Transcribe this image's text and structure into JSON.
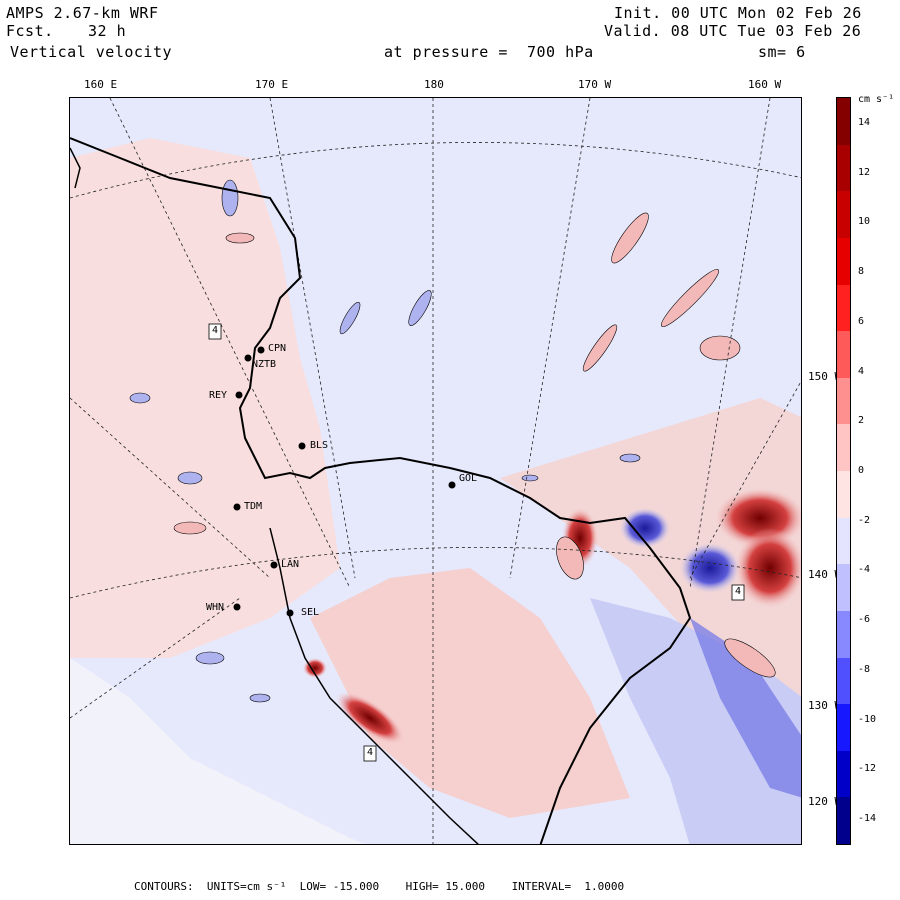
{
  "header": {
    "model": "AMPS 2.67-km WRF",
    "forecast_label": "Fcst.",
    "forecast_hours": "32 h",
    "field": "Vertical velocity",
    "init": "Init. 00 UTC Mon 02 Feb 26",
    "valid": "Valid. 08 UTC Tue 03 Feb 26",
    "pressure": "at pressure =  700 hPa",
    "smoothing": "sm= 6"
  },
  "longitude_labels": [
    "160 E",
    "170 E",
    "180",
    "170 W",
    "160 W"
  ],
  "latitude_labels": [
    "150 W",
    "140 W",
    "130 W",
    "120 W"
  ],
  "colorbar": {
    "unit": "cm s⁻¹",
    "tick_labels": [
      "14",
      "12",
      "10",
      "8",
      "6",
      "4",
      "2",
      "0",
      "-2",
      "-4",
      "-6",
      "-8",
      "-10",
      "-12",
      "-14"
    ],
    "min": -15,
    "max": 15,
    "interval": 1,
    "colors": [
      "#840000",
      "#a80000",
      "#c80000",
      "#e60000",
      "#ff2020",
      "#ff5a5a",
      "#ff9090",
      "#ffc4c4",
      "#ffe4e4",
      "#e4e4ff",
      "#c0c0ff",
      "#8888ff",
      "#5050ff",
      "#1818ff",
      "#0000c8",
      "#00008c"
    ]
  },
  "stations": [
    "CPN",
    "NZTB",
    "REY",
    "BLS",
    "GOL",
    "TDM",
    "LAN",
    "WHN",
    "SEL",
    "4",
    "4",
    "4"
  ],
  "footer": {
    "contours": "CONTOURS:",
    "units": "UNITS=cm s⁻¹",
    "low": "LOW= -15.000",
    "high": "HIGH= 15.000",
    "interval": "INTERVAL=  1.0000"
  },
  "colors": {
    "positive": "#f6c9c9",
    "negative": "#c9cdf6",
    "background": "#e6e8fb",
    "land_edge": "#ffffff"
  }
}
